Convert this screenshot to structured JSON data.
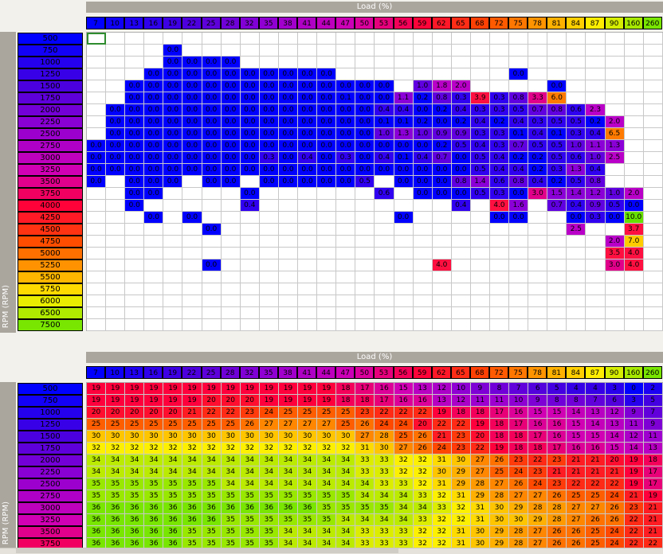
{
  "top": {
    "axis_title": "Load (%)",
    "row_axis_title": "RPM (RPM)"
  },
  "bottom": {
    "axis_title": "Load (%)",
    "row_axis_title": "RPM (RPM)"
  },
  "load_columns": [
    "7",
    "10",
    "13",
    "16",
    "19",
    "22",
    "25",
    "28",
    "32",
    "35",
    "38",
    "41",
    "44",
    "47",
    "50",
    "53",
    "56",
    "59",
    "62",
    "65",
    "68",
    "72",
    "75",
    "78",
    "81",
    "84",
    "87",
    "90",
    "160",
    "260"
  ],
  "rpm_rows_top": [
    "500",
    "750",
    "1000",
    "1250",
    "1500",
    "1750",
    "2000",
    "2250",
    "2500",
    "2750",
    "3000",
    "3250",
    "3500",
    "3750",
    "4000",
    "4250",
    "4500",
    "4750",
    "5000",
    "5250",
    "5500",
    "5750",
    "6000",
    "6500",
    "7500"
  ],
  "rpm_rows_bottom": [
    "500",
    "750",
    "1000",
    "1250",
    "1500",
    "1750",
    "2000",
    "2250",
    "2500",
    "2750",
    "3000",
    "3250",
    "3500",
    "3750"
  ],
  "top_cells": [
    [
      "",
      "",
      "",
      "",
      "",
      "",
      "",
      "",
      "",
      "",
      "",
      "",
      "",
      "",
      "",
      "",
      "",
      "",
      "",
      "",
      "",
      "",
      "",
      "",
      "",
      "",
      "",
      "",
      "",
      ""
    ],
    [
      "",
      "",
      "",
      "",
      "0.0",
      "",
      "",
      "",
      "",
      "",
      "",
      "",
      "",
      "",
      "",
      "",
      "",
      "",
      "",
      "",
      "",
      "",
      "",
      "",
      "",
      "",
      "",
      "",
      "",
      ""
    ],
    [
      "",
      "",
      "",
      "",
      "0.0",
      "0.0",
      "0.0",
      "0.0",
      "",
      "",
      "",
      "",
      "",
      "",
      "",
      "",
      "",
      "",
      "",
      "",
      "",
      "",
      "",
      "",
      "",
      "",
      "",
      "",
      "",
      ""
    ],
    [
      "",
      "",
      "",
      "0.0",
      "0.0",
      "0.0",
      "0.0",
      "0.0",
      "0.0",
      "0.0",
      "0.0",
      "0.0",
      "0.0",
      "",
      "",
      "",
      "",
      "",
      "",
      "",
      "",
      "",
      "0.0",
      "",
      "",
      "",
      "",
      "",
      "",
      ""
    ],
    [
      "",
      "",
      "0.0",
      "0.0",
      "0.0",
      "0.0",
      "0.0",
      "0.0",
      "0.0",
      "0.0",
      "0.0",
      "0.0",
      "0.0",
      "0.0",
      "0.0",
      "0.0",
      "",
      "1.0",
      "1.8",
      "2.0",
      "",
      "",
      "",
      "",
      "0.0",
      "",
      "",
      "",
      "",
      ""
    ],
    [
      "",
      "",
      "0.0",
      "0.0",
      "0.0",
      "0.0",
      "0.0",
      "0.0",
      "0.0",
      "0.0",
      "0.0",
      "0.0",
      "0.0",
      "0.1",
      "0.0",
      "0.0",
      "1.1",
      "0.2",
      "0.8",
      "0.3",
      "3.9",
      "0.3",
      "0.8",
      "3.3",
      "6.0",
      "",
      "",
      "",
      "",
      ""
    ],
    [
      "",
      "0.0",
      "0.0",
      "0.0",
      "0.0",
      "0.0",
      "0.0",
      "0.0",
      "0.0",
      "0.0",
      "0.0",
      "0.0",
      "0.0",
      "0.0",
      "0.0",
      "0.4",
      "0.4",
      "0.0",
      "0.2",
      "0.4",
      "0.3",
      "0.3",
      "0.5",
      "0.7",
      "0.8",
      "0.6",
      "2.3",
      "",
      "",
      ""
    ],
    [
      "",
      "0.0",
      "0.0",
      "0.0",
      "0.0",
      "0.0",
      "0.0",
      "0.0",
      "0.0",
      "0.0",
      "0.0",
      "0.0",
      "0.0",
      "0.0",
      "0.0",
      "0.1",
      "0.1",
      "0.2",
      "0.0",
      "0.2",
      "0.4",
      "0.2",
      "0.4",
      "0.3",
      "0.5",
      "0.5",
      "0.2",
      "2.0",
      "",
      ""
    ],
    [
      "",
      "0.0",
      "0.0",
      "0.0",
      "0.0",
      "0.0",
      "0.0",
      "0.0",
      "0.0",
      "0.0",
      "0.0",
      "0.0",
      "0.0",
      "0.0",
      "0.0",
      "1.0",
      "1.3",
      "1.0",
      "0.9",
      "0.9",
      "0.3",
      "0.3",
      "0.1",
      "0.4",
      "0.1",
      "0.3",
      "0.4",
      "6.5",
      "",
      ""
    ],
    [
      "0.0",
      "0.0",
      "0.0",
      "0.0",
      "0.0",
      "0.0",
      "0.0",
      "0.0",
      "0.0",
      "0.0",
      "0.0",
      "0.0",
      "0.0",
      "0.0",
      "0.0",
      "0.0",
      "0.0",
      "0.0",
      "0.2",
      "0.5",
      "0.4",
      "0.3",
      "0.7",
      "0.5",
      "0.5",
      "1.0",
      "1.1",
      "1.3",
      "",
      ""
    ],
    [
      "0.0",
      "0.0",
      "0.0",
      "0.0",
      "0.0",
      "0.0",
      "0.0",
      "0.0",
      "0.0",
      "0.3",
      "0.0",
      "0.4",
      "0.0",
      "0.3",
      "0.0",
      "0.4",
      "0.1",
      "0.4",
      "0.7",
      "0.0",
      "0.5",
      "0.4",
      "0.2",
      "0.2",
      "0.5",
      "0.6",
      "1.0",
      "2.5",
      "",
      ""
    ],
    [
      "0.0",
      "0.0",
      "0.0",
      "0.0",
      "0.0",
      "0.0",
      "0.0",
      "0.0",
      "0.0",
      "0.0",
      "0.0",
      "0.0",
      "0.0",
      "0.0",
      "0.0",
      "0.0",
      "0.0",
      "0.0",
      "0.0",
      "0.0",
      "0.5",
      "0.4",
      "0.4",
      "0.2",
      "0.3",
      "1.3",
      "0.4",
      "",
      "",
      ""
    ],
    [
      "0.0",
      "",
      "0.0",
      "0.0",
      "0.0",
      "",
      "0.0",
      "0.0",
      "",
      "0.0",
      "0.0",
      "0.0",
      "0.0",
      "0.0",
      "0.5",
      "",
      "0.0",
      "0.0",
      "0.0",
      "0.8",
      "1.4",
      "0.6",
      "0.8",
      "0.4",
      "0.2",
      "0.5",
      "0.8",
      "",
      "",
      ""
    ],
    [
      "",
      "",
      "0.0",
      "0.0",
      "",
      "",
      "",
      "",
      "0.0",
      "",
      "",
      "",
      "",
      "",
      "",
      "0.6",
      "",
      "0.0",
      "0.0",
      "0.0",
      "0.5",
      "0.3",
      "0.0",
      "3.0",
      "1.5",
      "1.4",
      "1.2",
      "1.0",
      "2.0",
      ""
    ],
    [
      "",
      "",
      "0.0",
      "",
      "",
      "",
      "",
      "",
      "0.4",
      "",
      "",
      "",
      "",
      "",
      "",
      "",
      "",
      "",
      "",
      "0.4",
      "",
      "4.0",
      "1.6",
      "",
      "0.7",
      "0.4",
      "0.9",
      "0.5",
      "0.0",
      ""
    ],
    [
      "",
      "",
      "",
      "0.0",
      "",
      "0.0",
      "",
      "",
      "",
      "",
      "",
      "",
      "",
      "",
      "",
      "",
      "0.0",
      "",
      "",
      "",
      "",
      "0.0",
      "0.0",
      "",
      "",
      "0.0",
      "0.3",
      "0.0",
      "10.0",
      ""
    ],
    [
      "",
      "",
      "",
      "",
      "",
      "",
      "0.0",
      "",
      "",
      "",
      "",
      "",
      "",
      "",
      "",
      "",
      "",
      "",
      "",
      "",
      "",
      "",
      "",
      "",
      "",
      "2.5",
      "",
      "",
      "3.7",
      ""
    ],
    [
      "",
      "",
      "",
      "",
      "",
      "",
      "",
      "",
      "",
      "",
      "",
      "",
      "",
      "",
      "",
      "",
      "",
      "",
      "",
      "",
      "",
      "",
      "",
      "",
      "",
      "",
      "",
      "2.0",
      "7.0",
      ""
    ],
    [
      "",
      "",
      "",
      "",
      "",
      "",
      "",
      "",
      "",
      "",
      "",
      "",
      "",
      "",
      "",
      "",
      "",
      "",
      "",
      "",
      "",
      "",
      "",
      "",
      "",
      "",
      "",
      "3.5",
      "4.0",
      ""
    ],
    [
      "",
      "",
      "",
      "",
      "",
      "",
      "0.0",
      "",
      "",
      "",
      "",
      "",
      "",
      "",
      "",
      "",
      "",
      "",
      "4.0",
      "",
      "",
      "",
      "",
      "",
      "",
      "",
      "",
      "3.0",
      "4.0",
      ""
    ],
    [
      "",
      "",
      "",
      "",
      "",
      "",
      "",
      "",
      "",
      "",
      "",
      "",
      "",
      "",
      "",
      "",
      "",
      "",
      "",
      "",
      "",
      "",
      "",
      "",
      "",
      "",
      "",
      "",
      "",
      ""
    ],
    [
      "",
      "",
      "",
      "",
      "",
      "",
      "",
      "",
      "",
      "",
      "",
      "",
      "",
      "",
      "",
      "",
      "",
      "",
      "",
      "",
      "",
      "",
      "",
      "",
      "",
      "",
      "",
      "",
      "",
      ""
    ],
    [
      "",
      "",
      "",
      "",
      "",
      "",
      "",
      "",
      "",
      "",
      "",
      "",
      "",
      "",
      "",
      "",
      "",
      "",
      "",
      "",
      "",
      "",
      "",
      "",
      "",
      "",
      "",
      "",
      "",
      ""
    ],
    [
      "",
      "",
      "",
      "",
      "",
      "",
      "",
      "",
      "",
      "",
      "",
      "",
      "",
      "",
      "",
      "",
      "",
      "",
      "",
      "",
      "",
      "",
      "",
      "",
      "",
      "",
      "",
      "",
      "",
      ""
    ],
    [
      "",
      "",
      "",
      "",
      "",
      "",
      "",
      "",
      "",
      "",
      "",
      "",
      "",
      "",
      "",
      "",
      "",
      "",
      "",
      "",
      "",
      "",
      "",
      "",
      "",
      "",
      "",
      "",
      "",
      ""
    ]
  ],
  "bottom_cells": [
    [
      19,
      19,
      19,
      19,
      19,
      19,
      19,
      19,
      19,
      19,
      19,
      19,
      19,
      18,
      17,
      16,
      15,
      13,
      12,
      10,
      9,
      8,
      7,
      6,
      5,
      4,
      4,
      3,
      0,
      2
    ],
    [
      19,
      19,
      19,
      19,
      19,
      19,
      20,
      20,
      20,
      19,
      19,
      19,
      19,
      18,
      18,
      17,
      16,
      16,
      13,
      12,
      11,
      11,
      10,
      9,
      8,
      8,
      7,
      6,
      3,
      5
    ],
    [
      20,
      20,
      20,
      20,
      20,
      21,
      22,
      22,
      23,
      24,
      25,
      25,
      25,
      25,
      23,
      22,
      22,
      22,
      19,
      18,
      18,
      17,
      16,
      15,
      15,
      14,
      13,
      12,
      9,
      7
    ],
    [
      25,
      25,
      25,
      25,
      25,
      25,
      25,
      25,
      26,
      27,
      27,
      27,
      27,
      25,
      26,
      24,
      24,
      20,
      22,
      22,
      19,
      18,
      17,
      16,
      16,
      15,
      14,
      13,
      11,
      9
    ],
    [
      30,
      30,
      30,
      30,
      30,
      30,
      30,
      30,
      30,
      30,
      30,
      30,
      30,
      30,
      27,
      28,
      25,
      26,
      21,
      23,
      20,
      18,
      18,
      17,
      16,
      15,
      15,
      14,
      12,
      11
    ],
    [
      32,
      32,
      32,
      32,
      32,
      32,
      32,
      32,
      32,
      32,
      32,
      32,
      32,
      32,
      31,
      30,
      27,
      26,
      24,
      23,
      22,
      19,
      18,
      18,
      17,
      16,
      16,
      15,
      14,
      13
    ],
    [
      34,
      34,
      34,
      34,
      34,
      34,
      34,
      34,
      34,
      34,
      34,
      34,
      34,
      34,
      33,
      33,
      32,
      32,
      31,
      30,
      27,
      26,
      23,
      22,
      23,
      21,
      21,
      20,
      19,
      18
    ],
    [
      34,
      34,
      34,
      34,
      34,
      34,
      34,
      34,
      34,
      34,
      34,
      34,
      34,
      34,
      33,
      33,
      32,
      32,
      30,
      29,
      27,
      25,
      24,
      23,
      21,
      21,
      21,
      21,
      19,
      17
    ],
    [
      35,
      35,
      35,
      35,
      35,
      35,
      35,
      34,
      34,
      34,
      34,
      34,
      34,
      34,
      34,
      33,
      33,
      32,
      31,
      29,
      28,
      27,
      26,
      24,
      23,
      22,
      22,
      22,
      19,
      17
    ],
    [
      35,
      35,
      35,
      35,
      35,
      35,
      35,
      35,
      35,
      35,
      35,
      35,
      35,
      35,
      34,
      34,
      34,
      33,
      32,
      31,
      29,
      28,
      27,
      27,
      26,
      25,
      25,
      24,
      21,
      19
    ],
    [
      36,
      36,
      36,
      36,
      36,
      36,
      36,
      36,
      36,
      36,
      36,
      36,
      35,
      35,
      35,
      35,
      34,
      34,
      33,
      32,
      31,
      30,
      29,
      28,
      28,
      27,
      27,
      26,
      23,
      21
    ],
    [
      36,
      36,
      36,
      36,
      36,
      36,
      36,
      35,
      35,
      35,
      35,
      35,
      35,
      34,
      34,
      34,
      34,
      33,
      32,
      32,
      31,
      30,
      30,
      29,
      28,
      27,
      26,
      26,
      22,
      21
    ],
    [
      36,
      36,
      36,
      36,
      36,
      35,
      35,
      35,
      35,
      35,
      34,
      34,
      34,
      34,
      33,
      33,
      33,
      32,
      32,
      31,
      30,
      29,
      28,
      27,
      26,
      26,
      25,
      24,
      22,
      21
    ],
    [
      36,
      36,
      36,
      36,
      36,
      35,
      35,
      35,
      35,
      35,
      34,
      34,
      34,
      34,
      33,
      33,
      33,
      32,
      32,
      31,
      30,
      29,
      28,
      27,
      26,
      26,
      25,
      24,
      22,
      22
    ]
  ],
  "colors": {
    "axis_bar": "#aaa59d",
    "selection": "#2e8b2e",
    "grid_line": "#c8c8c8"
  }
}
